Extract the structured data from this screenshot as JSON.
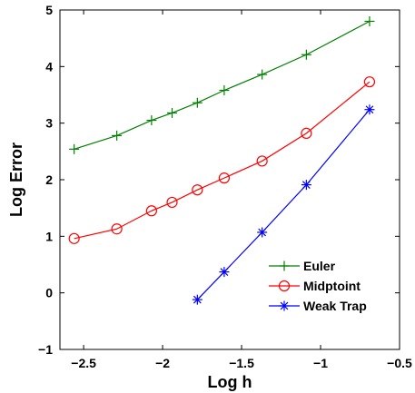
{
  "chart_data": {
    "type": "line",
    "xlabel": "Log h",
    "ylabel": "Log Error",
    "xlim": [
      -2.65,
      -0.5
    ],
    "ylim": [
      -1,
      5
    ],
    "xticks": [
      -2.5,
      -2,
      -1.5,
      -1,
      -0.5
    ],
    "xtick_labels": [
      "−2.5",
      "−2",
      "−1.5",
      "−1",
      "−0.5"
    ],
    "yticks": [
      -1,
      0,
      1,
      2,
      3,
      4,
      5
    ],
    "ytick_labels": [
      "−1",
      "0",
      "1",
      "2",
      "3",
      "4",
      "5"
    ],
    "grid": false,
    "legend_position": "bottom-right",
    "series": [
      {
        "name": "Euler",
        "color": "#008000",
        "marker": "plus",
        "x": [
          -2.56,
          -2.29,
          -2.07,
          -1.94,
          -1.78,
          -1.61,
          -1.37,
          -1.09,
          -0.69
        ],
        "y": [
          2.54,
          2.78,
          3.05,
          3.18,
          3.36,
          3.58,
          3.86,
          4.21,
          4.8
        ]
      },
      {
        "name": "Midptoint",
        "color": "#ff0000",
        "marker": "circle",
        "x": [
          -2.56,
          -2.29,
          -2.07,
          -1.94,
          -1.78,
          -1.61,
          -1.37,
          -1.09,
          -0.69
        ],
        "y": [
          0.96,
          1.13,
          1.45,
          1.6,
          1.82,
          2.03,
          2.33,
          2.82,
          3.73
        ]
      },
      {
        "name": "Weak Trap",
        "color": "#0000ff",
        "marker": "star",
        "x": [
          -1.78,
          -1.61,
          -1.37,
          -1.09,
          -0.69
        ],
        "y": [
          -0.12,
          0.37,
          1.07,
          1.91,
          3.24
        ]
      }
    ]
  }
}
